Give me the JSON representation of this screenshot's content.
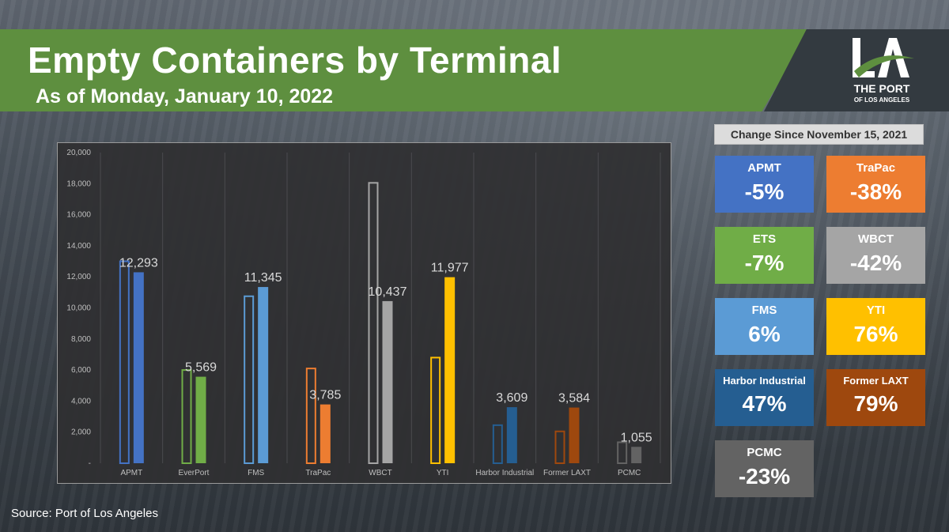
{
  "header": {
    "title": "Empty Containers by Terminal",
    "subtitle": "As of Monday, January 10, 2022"
  },
  "logo": {
    "mark": "LA",
    "line1": "THE PORT",
    "line2": "OF LOS ANGELES"
  },
  "change_panel": {
    "header": "Change Since November 15, 2021",
    "cards": [
      {
        "name": "APMT",
        "value": "-5%",
        "color": "#4472c4"
      },
      {
        "name": "TraPac",
        "value": "-38%",
        "color": "#ed7d31"
      },
      {
        "name": "ETS",
        "value": "-7%",
        "color": "#70ad47"
      },
      {
        "name": "WBCT",
        "value": "-42%",
        "color": "#a5a5a5"
      },
      {
        "name": "FMS",
        "value": "6%",
        "color": "#5b9bd5"
      },
      {
        "name": "YTI",
        "value": "76%",
        "color": "#ffc000"
      },
      {
        "name": "Harbor Industrial",
        "value": "47%",
        "color": "#255e91"
      },
      {
        "name": "Former LAXT",
        "value": "79%",
        "color": "#9e480e"
      },
      {
        "name": "PCMC",
        "value": "-23%",
        "color": "#636363"
      }
    ]
  },
  "source": "Source: Port of Los Angeles",
  "chart_data": {
    "type": "bar",
    "title": "",
    "xlabel": "",
    "ylabel": "",
    "ylim": [
      0,
      20000
    ],
    "yticks": [
      0,
      2000,
      4000,
      6000,
      8000,
      10000,
      12000,
      14000,
      16000,
      18000,
      20000
    ],
    "ytick_labels": [
      "-",
      "2,000",
      "4,000",
      "6,000",
      "8,000",
      "10,000",
      "12,000",
      "14,000",
      "16,000",
      "18,000",
      "20,000"
    ],
    "grid": "vertical",
    "categories": [
      "APMT",
      "EverPort",
      "FMS",
      "TraPac",
      "WBCT",
      "YTI",
      "Harbor Industrial",
      "Former LAXT",
      "PCMC"
    ],
    "colors": [
      "#4472c4",
      "#70ad47",
      "#5b9bd5",
      "#ed7d31",
      "#a5a5a5",
      "#ffc000",
      "#255e91",
      "#9e480e",
      "#636363"
    ],
    "series": [
      {
        "values": [
          13000,
          6000,
          10750,
          6100,
          18050,
          6800,
          2450,
          2050,
          1350
        ],
        "style": "outline"
      },
      {
        "values": [
          12293,
          5569,
          11345,
          3785,
          10437,
          11977,
          3609,
          3584,
          1055
        ],
        "style": "filled"
      }
    ],
    "data_labels": [
      "12,293",
      "5,569",
      "11,345",
      "3,785",
      "10,437",
      "11,977",
      "3,609",
      "3,584",
      "1,055"
    ]
  }
}
